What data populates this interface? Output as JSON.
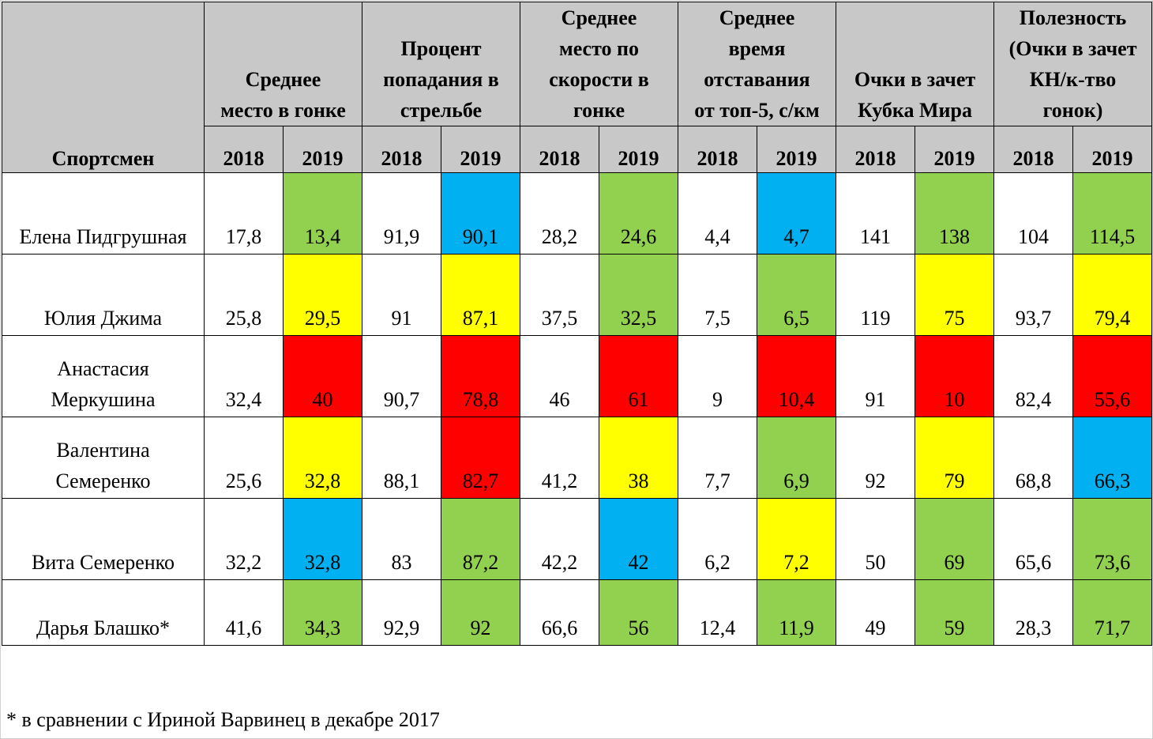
{
  "colors": {
    "green": "#92d050",
    "yellow": "#ffff00",
    "red": "#ff0000",
    "blue": "#00b0f0",
    "header_bg": "#c8c8c8"
  },
  "table": {
    "athlete_header": "Спортсмен",
    "groups": [
      "Среднее\nместо в гонке",
      "Процент\nпопадания в\nстрельбе",
      "Среднее\nместо по\nскорости в\nгонке",
      "Среднее\nвремя\nотставания\nот топ-5, с/км",
      "Очки в зачет\nКубка Мира",
      "Полезность\n(Очки в зачет\nКН/к-тво\nгонок)"
    ],
    "years": [
      "2018",
      "2019"
    ],
    "rows": [
      {
        "name": "Елена Пидгрушная",
        "values": [
          "17,8",
          "13,4",
          "91,9",
          "90,1",
          "28,2",
          "24,6",
          "4,4",
          "4,7",
          "141",
          "138",
          "104",
          "114,5"
        ],
        "colors": [
          "white",
          "green",
          "white",
          "blue",
          "white",
          "green",
          "white",
          "blue",
          "white",
          "green",
          "white",
          "green"
        ]
      },
      {
        "name": "Юлия Джима",
        "values": [
          "25,8",
          "29,5",
          "91",
          "87,1",
          "37,5",
          "32,5",
          "7,5",
          "6,5",
          "119",
          "75",
          "93,7",
          "79,4"
        ],
        "colors": [
          "white",
          "yellow",
          "white",
          "yellow",
          "white",
          "green",
          "white",
          "green",
          "white",
          "yellow",
          "white",
          "yellow"
        ]
      },
      {
        "name": "Анастасия\nМеркушина",
        "values": [
          "32,4",
          "40",
          "90,7",
          "78,8",
          "46",
          "61",
          "9",
          "10,4",
          "91",
          "10",
          "82,4",
          "55,6"
        ],
        "colors": [
          "white",
          "red",
          "white",
          "red",
          "white",
          "red",
          "white",
          "red",
          "white",
          "red",
          "white",
          "red"
        ]
      },
      {
        "name": "Валентина\nСемеренко",
        "values": [
          "25,6",
          "32,8",
          "88,1",
          "82,7",
          "41,2",
          "38",
          "7,7",
          "6,9",
          "92",
          "79",
          "68,8",
          "66,3"
        ],
        "colors": [
          "white",
          "yellow",
          "white",
          "red",
          "white",
          "yellow",
          "white",
          "green",
          "white",
          "yellow",
          "white",
          "blue"
        ]
      },
      {
        "name": "Вита Семеренко",
        "values": [
          "32,2",
          "32,8",
          "83",
          "87,2",
          "42,2",
          "42",
          "6,2",
          "7,2",
          "50",
          "69",
          "65,6",
          "73,6"
        ],
        "colors": [
          "white",
          "blue",
          "white",
          "green",
          "white",
          "blue",
          "white",
          "yellow",
          "white",
          "green",
          "white",
          "green"
        ]
      },
      {
        "name": "Дарья Блашко*",
        "values": [
          "41,6",
          "34,3",
          "92,9",
          "92",
          "66,6",
          "56",
          "12,4",
          "11,9",
          "49",
          "59",
          "28,3",
          "71,7"
        ],
        "colors": [
          "white",
          "green",
          "white",
          "green",
          "white",
          "green",
          "white",
          "green",
          "white",
          "green",
          "white",
          "green"
        ]
      }
    ]
  },
  "footnote": "* в сравнении с Ириной Варвинец в декабре 2017"
}
